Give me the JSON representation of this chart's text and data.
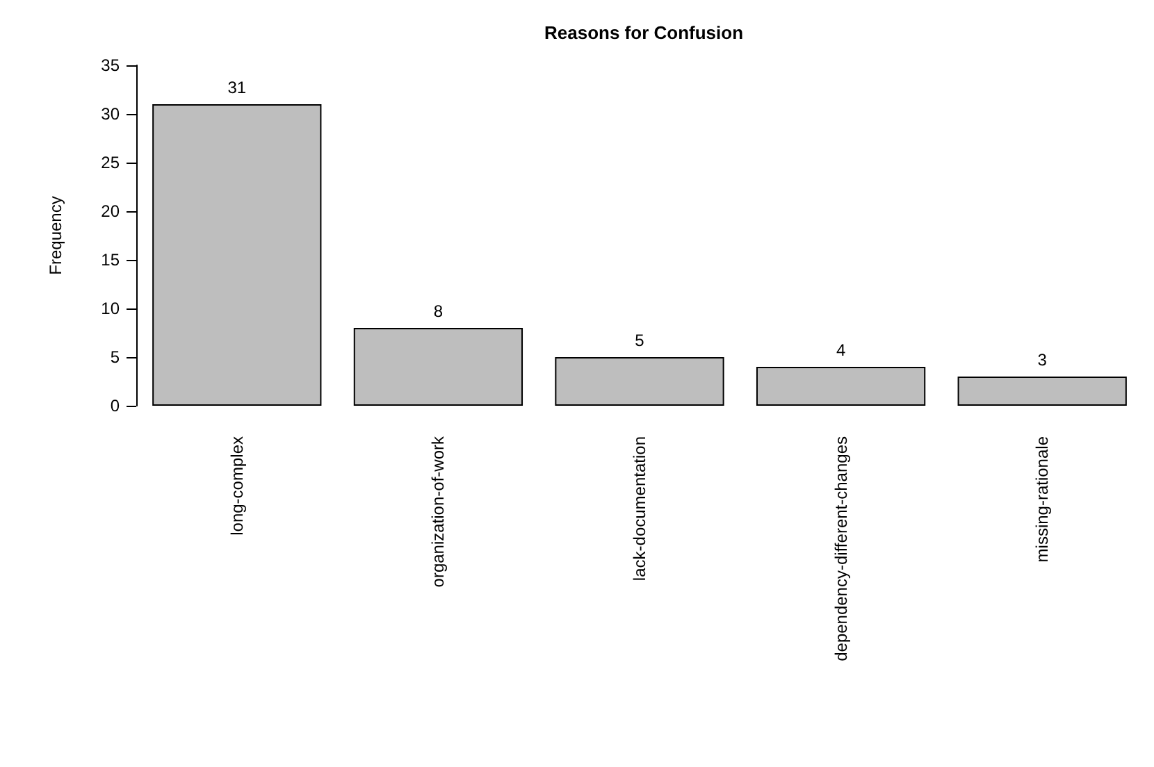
{
  "chart_data": {
    "type": "bar",
    "title": "Reasons for Confusion",
    "ylabel": "Frequency",
    "categories": [
      "long-complex",
      "organization-of-work",
      "lack-documentation",
      "dependency-different-changes",
      "missing-rationale"
    ],
    "values": [
      31,
      8,
      5,
      4,
      3
    ],
    "color": "#bebebe",
    "ylim": [
      0,
      35
    ],
    "yticks": [
      0,
      5,
      10,
      15,
      20,
      25,
      30,
      35
    ],
    "grid": false,
    "data_labels": true
  }
}
